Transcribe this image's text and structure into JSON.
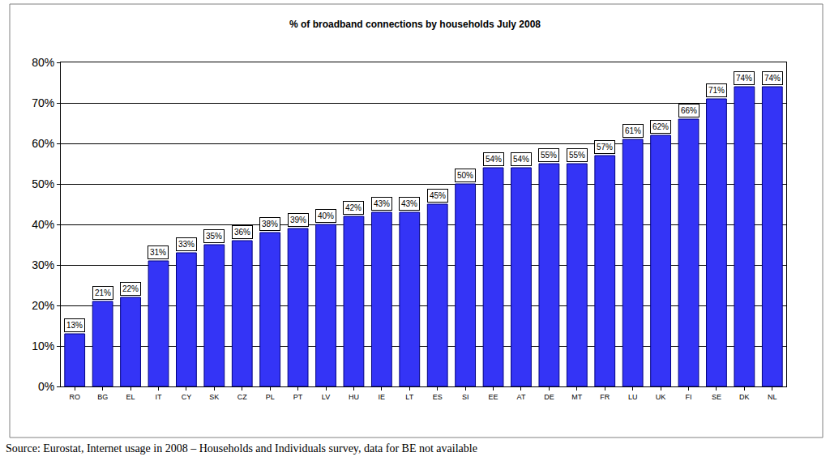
{
  "chart_data": {
    "type": "bar",
    "title": "% of broadband connections by households July 2008",
    "categories": [
      "RO",
      "BG",
      "EL",
      "IT",
      "CY",
      "SK",
      "CZ",
      "PL",
      "PT",
      "LV",
      "HU",
      "IE",
      "LT",
      "ES",
      "SI",
      "EE",
      "AT",
      "DE",
      "MT",
      "FR",
      "LU",
      "UK",
      "FI",
      "SE",
      "DK",
      "NL"
    ],
    "values": [
      13,
      21,
      22,
      31,
      33,
      35,
      36,
      38,
      39,
      40,
      42,
      43,
      43,
      45,
      50,
      54,
      54,
      55,
      55,
      57,
      61,
      62,
      66,
      71,
      74,
      74
    ],
    "value_labels": [
      "13%",
      "21%",
      "22%",
      "31%",
      "33%",
      "35%",
      "36%",
      "38%",
      "39%",
      "40%",
      "42%",
      "43%",
      "43%",
      "45%",
      "50%",
      "54%",
      "54%",
      "55%",
      "55%",
      "57%",
      "61%",
      "62%",
      "66%",
      "71%",
      "74%",
      "74%"
    ],
    "data_labels": true,
    "color": "#3434f6",
    "ylim": [
      0,
      80
    ],
    "yticks": [
      {
        "value": 0,
        "label": "0%"
      },
      {
        "value": 10,
        "label": "10%"
      },
      {
        "value": 20,
        "label": "20%"
      },
      {
        "value": 30,
        "label": "30%"
      },
      {
        "value": 40,
        "label": "40%"
      },
      {
        "value": 50,
        "label": "50%"
      },
      {
        "value": 60,
        "label": "60%"
      },
      {
        "value": 70,
        "label": "70%"
      },
      {
        "value": 80,
        "label": "80%"
      }
    ],
    "grid": true,
    "annotations": [
      "Source: Eurostat, Internet usage in 2008 – Households and Individuals survey, data for BE not available"
    ]
  }
}
